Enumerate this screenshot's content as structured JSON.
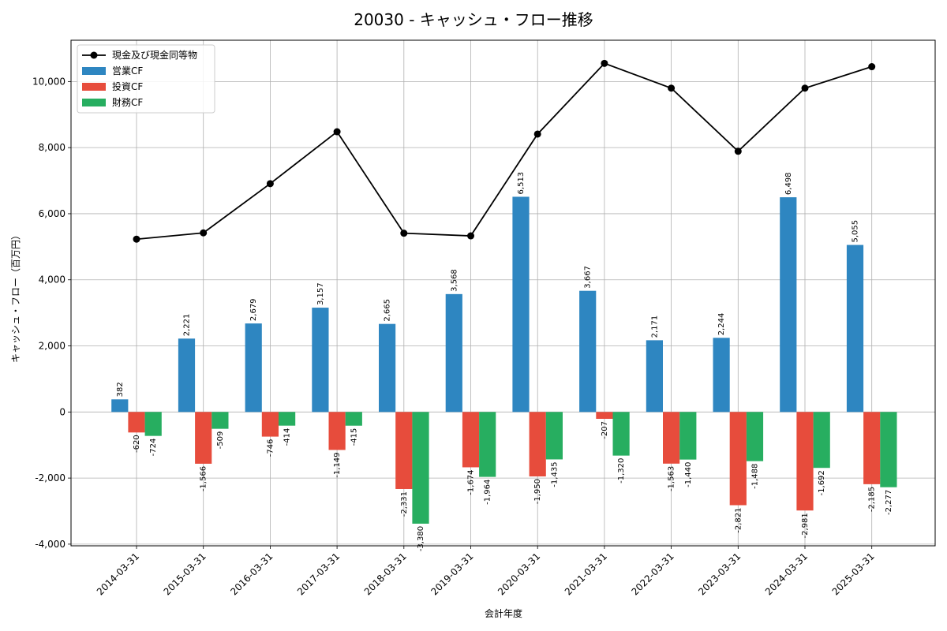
{
  "chart_data": {
    "type": "bar",
    "title": "20030 - キャッシュ・フロー推移",
    "xlabel": "会計年度",
    "ylabel": "キャッシュ・フロー（百万円）",
    "categories": [
      "2014-03-31",
      "2015-03-31",
      "2016-03-31",
      "2017-03-31",
      "2018-03-31",
      "2019-03-31",
      "2020-03-31",
      "2021-03-31",
      "2022-03-31",
      "2023-03-31",
      "2024-03-31",
      "2025-03-31"
    ],
    "ylim": [
      -4050,
      11250
    ],
    "yticks": [
      -4000,
      -2000,
      0,
      2000,
      4000,
      6000,
      8000,
      10000
    ],
    "ytick_labels": [
      "-4,000",
      "-2,000",
      "0",
      "2,000",
      "4,000",
      "6,000",
      "8,000",
      "10,000"
    ],
    "grid": true,
    "legend_position": "top-left",
    "series": [
      {
        "name": "営業CF",
        "kind": "bar",
        "color": "#2e86c1",
        "values": [
          382,
          2221,
          2679,
          3157,
          2665,
          3568,
          6513,
          3667,
          2171,
          2244,
          6498,
          5055
        ],
        "labels": [
          "382",
          "2,221",
          "2,679",
          "3,157",
          "2,665",
          "3,568",
          "6,513",
          "3,667",
          "2,171",
          "2,244",
          "6,498",
          "5,055"
        ]
      },
      {
        "name": "投資CF",
        "kind": "bar",
        "color": "#e74c3c",
        "values": [
          -620,
          -1566,
          -746,
          -1149,
          -2331,
          -1674,
          -1950,
          -207,
          -1563,
          -2821,
          -2981,
          -2185
        ],
        "labels": [
          "-620",
          "-1,566",
          "-746",
          "-1,149",
          "-2,331",
          "-1,674",
          "-1,950",
          "-207",
          "-1,563",
          "-2,821",
          "-2,981",
          "-2,185"
        ]
      },
      {
        "name": "財務CF",
        "kind": "bar",
        "color": "#27ae60",
        "values": [
          -724,
          -509,
          -414,
          -415,
          -3380,
          -1964,
          -1435,
          -1320,
          -1440,
          -1488,
          -1692,
          -2277
        ],
        "labels": [
          "-724",
          "-509",
          "-414",
          "-415",
          "-3,380",
          "-1,964",
          "-1,435",
          "-1,320",
          "-1,440",
          "-1,488",
          "-1,692",
          "-2,277"
        ]
      },
      {
        "name": "現金及び現金同等物",
        "kind": "line",
        "color": "#000000",
        "values": [
          5230,
          5420,
          6910,
          8480,
          5410,
          5330,
          8410,
          10550,
          9800,
          7890,
          9800,
          10450
        ]
      }
    ]
  }
}
